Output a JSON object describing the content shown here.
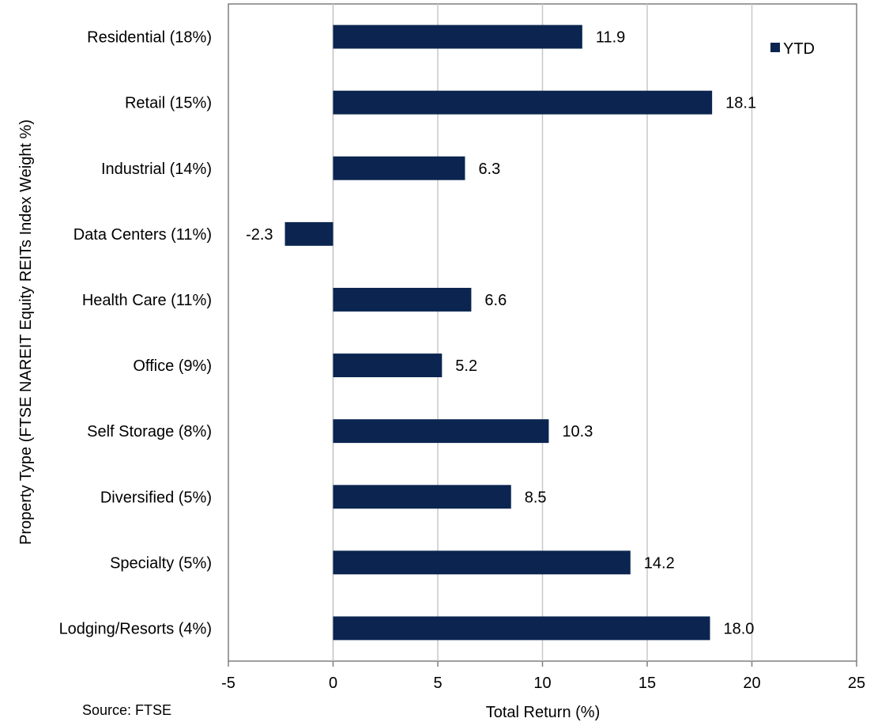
{
  "chart_data": {
    "type": "bar",
    "orientation": "horizontal",
    "categories": [
      "Residential (18%)",
      "Retail (15%)",
      "Industrial (14%)",
      "Data Centers (11%)",
      "Health Care (11%)",
      "Office (9%)",
      "Self Storage (8%)",
      "Diversified (5%)",
      "Specialty (5%)",
      "Lodging/Resorts (4%)"
    ],
    "series": [
      {
        "name": "YTD",
        "values": [
          11.9,
          18.1,
          6.3,
          -2.3,
          6.6,
          5.2,
          10.3,
          8.5,
          14.2,
          18.0
        ],
        "labels": [
          "11.9",
          "18.1",
          "6.3",
          "-2.3",
          "6.6",
          "5.2",
          "10.3",
          "8.5",
          "14.2",
          "18.0"
        ],
        "color": "#0b2550"
      }
    ],
    "xlabel": "Total Return (%)",
    "ylabel": "Property Type (FTSE NAREIT Equity REITs Index Weight %)",
    "xlim": [
      -5,
      25
    ],
    "xticks": [
      -5,
      0,
      5,
      10,
      15,
      20,
      25
    ],
    "grid": true,
    "legend_position": "top-right"
  },
  "source_note": "Source:  FTSE",
  "colors": {
    "bar": "#0b2550",
    "gridline": "#c8c8c8",
    "axis": "#7f7f7f"
  }
}
